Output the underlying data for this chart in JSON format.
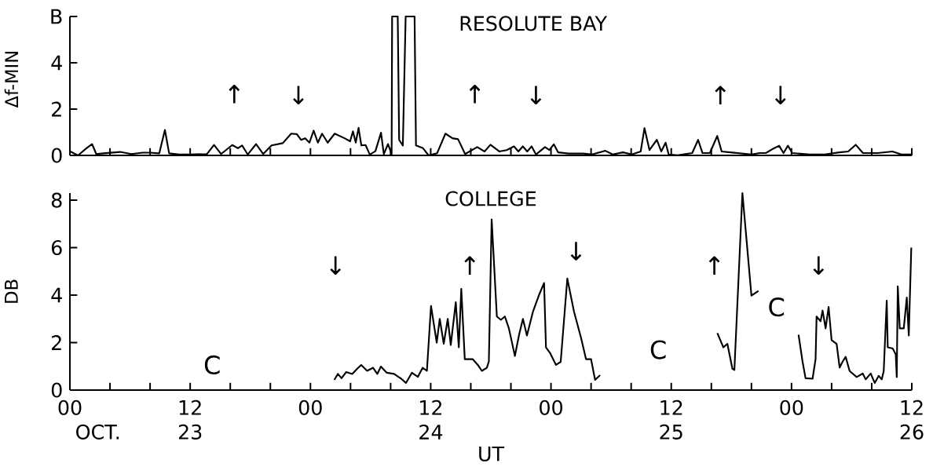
{
  "chart_data": [
    {
      "type": "line",
      "title": "RESOLUTE BAY",
      "ylabel": "Δf-MIN",
      "xlim": [
        0,
        84
      ],
      "xticks": [
        {
          "value": 4,
          "label": null
        },
        {
          "value": 8,
          "label": null
        },
        {
          "value": 12,
          "label": null
        },
        {
          "value": 16,
          "label": null
        },
        {
          "value": 20,
          "label": null
        },
        {
          "value": 24,
          "label": null
        },
        {
          "value": 28,
          "label": null
        },
        {
          "value": 32,
          "label": null
        },
        {
          "value": 36,
          "label": null
        },
        {
          "value": 40,
          "label": null
        },
        {
          "value": 44,
          "label": null
        },
        {
          "value": 48,
          "label": null
        },
        {
          "value": 52,
          "label": null
        },
        {
          "value": 56,
          "label": null
        },
        {
          "value": 60,
          "label": null
        },
        {
          "value": 64,
          "label": null
        },
        {
          "value": 68,
          "label": null
        },
        {
          "value": 72,
          "label": null
        },
        {
          "value": 76,
          "label": null
        },
        {
          "value": 80,
          "label": null
        },
        {
          "value": 84,
          "label": null
        }
      ],
      "ylim": [
        0,
        6
      ],
      "yticks": [
        0,
        2,
        4,
        {
          "value": 6,
          "label": "B"
        }
      ],
      "tick_labels": "y",
      "marker": "none",
      "annotations": [
        "↑",
        "↓",
        "↑",
        "↓",
        "↑",
        "↓"
      ],
      "series": [
        {
          "color": "#000000",
          "x": [
            0,
            0.81,
            1.65,
            2.21,
            2.63,
            3.33,
            5.01,
            6.13,
            7.25,
            7.95,
            8.92,
            9.48,
            9.9,
            10.88,
            12.0,
            13.68,
            14.38,
            15.08,
            16.2,
            16.76,
            17.18,
            17.74,
            18.58,
            19.28,
            20.12,
            21.24,
            22.08,
            22.64,
            23.06,
            23.48,
            23.9,
            24.32,
            24.74,
            25.16,
            25.72,
            26.42,
            27.4,
            27.96,
            28.24,
            28.52,
            28.8,
            29.08,
            29.5,
            29.92,
            30.48,
            31.04,
            31.32,
            31.74,
            32.1,
            32.15,
            32.71,
            32.85,
            33.22,
            33.5,
            34.39,
            34.53,
            35.23,
            35.79,
            36.63,
            37.47,
            38.17,
            38.73,
            39.43,
            40.64,
            41.37,
            41.96,
            42.84,
            43.58,
            44.31,
            44.75,
            45.19,
            45.63,
            46.07,
            46.5,
            47.4,
            47.84,
            48.28,
            48.72,
            49.75,
            51.22,
            52.1,
            53.42,
            54.16,
            55.18,
            56.07,
            56.95,
            57.33,
            57.83,
            58.56,
            59.0,
            59.44,
            59.74,
            60.62,
            62.09,
            62.68,
            63.12,
            63.85,
            64.59,
            65.03,
            65.91,
            67.97,
            68.85,
            69.44,
            70.17,
            70.76,
            71.2,
            71.64,
            72.08,
            73.84,
            75.31,
            76.78,
            77.66,
            78.4,
            79.13,
            80.6,
            82.07,
            82.95,
            84
          ],
          "values": [
            0.18,
            0,
            0.31,
            0.49,
            0.06,
            0.09,
            0.15,
            0.06,
            0.12,
            0.12,
            0.09,
            1.1,
            0.09,
            0.04,
            0.04,
            0.06,
            0.45,
            0.06,
            0.45,
            0.31,
            0.43,
            0.04,
            0.49,
            0.06,
            0.43,
            0.53,
            0.94,
            0.92,
            0.67,
            0.74,
            0.55,
            1.07,
            0.55,
            0.94,
            0.55,
            0.94,
            0.74,
            0.61,
            1.04,
            0.55,
            1.19,
            0.43,
            0.45,
            0.04,
            0.18,
            0.98,
            0.06,
            0.49,
            0.06,
            6,
            6,
            0.67,
            0.43,
            6,
            6,
            0.43,
            0.31,
            0,
            0.09,
            0.94,
            0.74,
            0.7,
            0.06,
            0.36,
            0.17,
            0.46,
            0.17,
            0.23,
            0.39,
            0.17,
            0.39,
            0.17,
            0.39,
            0.04,
            0.36,
            0.23,
            0.48,
            0.13,
            0.08,
            0.08,
            0.04,
            0.2,
            0.04,
            0.13,
            0.04,
            0.17,
            1.18,
            0.23,
            0.67,
            0.17,
            0.55,
            0.04,
            0.01,
            0.1,
            0.67,
            0.1,
            0.1,
            0.84,
            0.17,
            0.13,
            0.04,
            0.1,
            0.1,
            0.29,
            0.42,
            0.1,
            0.42,
            0.1,
            0.04,
            0.04,
            0.13,
            0.17,
            0.46,
            0.1,
            0.1,
            0.17,
            0.04,
            0.04
          ]
        }
      ]
    },
    {
      "type": "line",
      "title": "COLLEGE",
      "xlabel": "UT",
      "ylabel": "DB",
      "xlim": [
        0,
        84
      ],
      "xticks": [
        {
          "value": 0,
          "label": "00"
        },
        {
          "value": 4,
          "label": null
        },
        {
          "value": 8,
          "label": null
        },
        12,
        {
          "value": 16,
          "label": null
        },
        {
          "value": 20,
          "label": null
        },
        {
          "value": 24,
          "label": "00"
        },
        {
          "value": 28,
          "label": null
        },
        {
          "value": 32,
          "label": null
        },
        {
          "value": 36,
          "label": "12"
        },
        {
          "value": 40,
          "label": null
        },
        {
          "value": 44,
          "label": null
        },
        {
          "value": 48,
          "label": "00"
        },
        {
          "value": 52,
          "label": null
        },
        {
          "value": 56,
          "label": null
        },
        {
          "value": 60,
          "label": "12"
        },
        {
          "value": 64,
          "label": null
        },
        {
          "value": 68,
          "label": null
        },
        {
          "value": 72,
          "label": "00"
        },
        {
          "value": 76,
          "label": null
        },
        {
          "value": 80,
          "label": null
        },
        {
          "value": 84,
          "label": "12"
        }
      ],
      "ylim": [
        0,
        8.3
      ],
      "yticks": [
        0,
        2,
        4,
        6,
        8
      ],
      "marker": "none",
      "annotations": [
        "OCT.",
        "23",
        "24",
        "25",
        "26",
        "C",
        "C",
        "C",
        "↓",
        "↑",
        "↓",
        "↑",
        "↓"
      ],
      "series": [
        {
          "color": "#000000",
          "x": [
            26.38,
            26.74,
            27.1,
            27.57,
            28.17,
            28.65,
            29.06,
            29.66,
            30.25,
            30.67,
            31.03,
            31.62,
            32.34,
            33.05,
            33.53,
            34.12,
            34.72,
            35.2,
            35.62,
            36.03,
            36.6,
            36.9,
            37.3,
            37.7,
            38.0,
            38.5,
            38.8,
            39.05,
            39.4,
            40.2,
            40.7,
            41.1,
            41.6,
            41.8,
            42.08,
            42.6,
            43.0,
            43.4,
            43.8,
            44.4,
            44.8,
            45.2,
            45.6,
            46.2,
            46.8,
            47.31,
            47.5,
            47.9,
            48.5,
            48.97,
            49.63,
            50.3,
            51.0,
            51.5,
            52.0,
            52.4,
            52.9,
            58,
            64.6,
            65.2,
            65.6,
            66.1,
            66.3,
            67.1,
            68.0,
            68.7,
            70.5,
            72.7,
            73.1,
            73.4,
            74.1,
            74.4,
            74.5,
            74.9,
            75.1,
            75.4,
            75.7,
            76.0,
            76.5,
            76.8,
            77.1,
            77.4,
            77.8,
            78.5,
            79.1,
            79.4,
            79.9,
            80.3,
            80.7,
            81.0,
            81.2,
            81.5,
            81.6,
            82.1,
            82.4,
            82.5,
            82.6,
            82.8,
            83.2,
            83.5,
            83.7,
            83.95
          ],
          "values": [
            0.43,
            0.68,
            0.5,
            0.76,
            0.68,
            0.89,
            1.06,
            0.81,
            0.94,
            0.68,
            0.99,
            0.73,
            0.68,
            0.48,
            0.3,
            0.73,
            0.56,
            0.94,
            0.81,
            3.54,
            2.0,
            3.0,
            1.95,
            3.0,
            1.9,
            3.7,
            1.8,
            4.26,
            1.3,
            1.3,
            1.06,
            0.81,
            0.94,
            1.2,
            7.19,
            3.1,
            2.96,
            3.1,
            2.6,
            1.44,
            2.3,
            3.0,
            2.3,
            3.3,
            4.0,
            4.51,
            1.8,
            1.57,
            1.06,
            1.19,
            4.7,
            3.3,
            2.2,
            1.3,
            1.3,
            0.43,
            0.63,
            null,
            2.4,
            1.8,
            1.95,
            0.9,
            0.85,
            8.3,
            3.98,
            4.18,
            null,
            2.33,
            1.2,
            0.5,
            0.48,
            1.3,
            3.1,
            2.9,
            3.35,
            2.6,
            3.5,
            2.1,
            1.95,
            0.95,
            1.2,
            1.4,
            0.8,
            0.55,
            0.7,
            0.45,
            0.7,
            0.3,
            0.6,
            0.45,
            0.8,
            3.77,
            1.8,
            1.75,
            1.5,
            0.55,
            4.37,
            2.6,
            2.6,
            3.9,
            2.3,
            6.0
          ]
        }
      ]
    }
  ]
}
